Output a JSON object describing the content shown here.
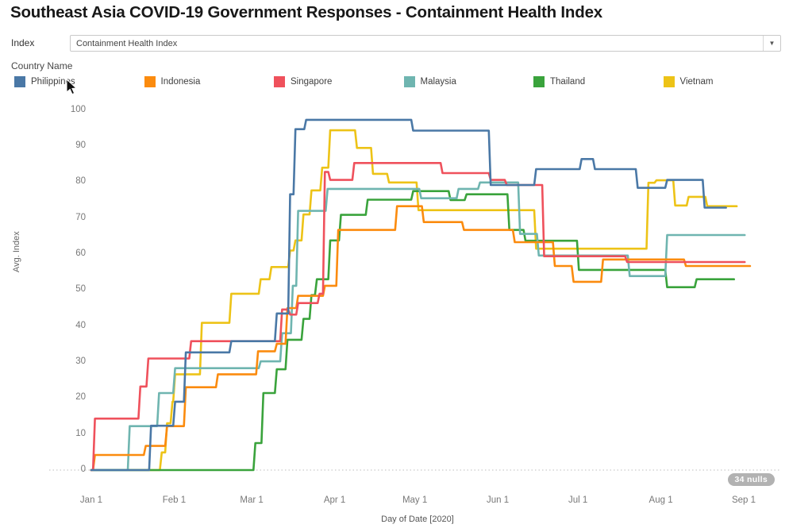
{
  "header": {
    "title": "Southeast Asia COVID-19 Government Responses - Containment Health Index"
  },
  "index_control": {
    "label": "Index",
    "value": "Containment Health Index",
    "caret_icon": "▼"
  },
  "legend": {
    "title": "Country Name",
    "items": [
      {
        "label": "Philippines",
        "color": "#4a78a6"
      },
      {
        "label": "Indonesia",
        "color": "#fb8b0e"
      },
      {
        "label": "Singapore",
        "color": "#ef515c"
      },
      {
        "label": "Malaysia",
        "color": "#6fb5b0"
      },
      {
        "label": "Thailand",
        "color": "#3aa33c"
      },
      {
        "label": "Vietnam",
        "color": "#edc317"
      }
    ]
  },
  "chart_data": {
    "type": "line",
    "step": true,
    "title": "Southeast Asia COVID-19 Government Responses - Containment Health Index",
    "xlabel": "Day of Date [2020]",
    "ylabel": "Avg. Index",
    "ylim": [
      0,
      100
    ],
    "y_ticks": [
      0,
      10,
      20,
      30,
      40,
      50,
      60,
      70,
      80,
      90,
      100
    ],
    "x_ticks": [
      {
        "label": "Jan 1",
        "day": 0
      },
      {
        "label": "Feb 1",
        "day": 31
      },
      {
        "label": "Mar 1",
        "day": 60
      },
      {
        "label": "Apr 1",
        "day": 91
      },
      {
        "label": "May 1",
        "day": 121
      },
      {
        "label": "Jun 1",
        "day": 152
      },
      {
        "label": "Jul 1",
        "day": 182
      },
      {
        "label": "Aug 1",
        "day": 213
      },
      {
        "label": "Sep 1",
        "day": 244
      }
    ],
    "grid": "zero-line-dotted-only",
    "legend_position": "top",
    "nulls_badge": "34 nulls",
    "series": [
      {
        "name": "Philippines",
        "color": "#4a78a6",
        "points": [
          [
            0,
            0
          ],
          [
            22,
            12.3
          ],
          [
            31,
            19
          ],
          [
            35,
            32.7
          ],
          [
            52,
            35.8
          ],
          [
            69,
            43.5
          ],
          [
            74,
            76.6
          ],
          [
            76,
            94.7
          ],
          [
            80,
            97.3
          ],
          [
            120,
            94.3
          ],
          [
            149,
            79.2
          ],
          [
            166,
            83.6
          ],
          [
            183,
            86.4
          ],
          [
            188,
            83.6
          ],
          [
            204,
            78.4
          ],
          [
            215,
            80.6
          ],
          [
            229,
            72.9
          ],
          [
            237,
            72.9
          ]
        ]
      },
      {
        "name": "Indonesia",
        "color": "#fb8b0e",
        "points": [
          [
            0,
            0
          ],
          [
            1,
            4.2
          ],
          [
            20,
            6.7
          ],
          [
            28,
            12.2
          ],
          [
            35,
            23
          ],
          [
            47,
            26.6
          ],
          [
            62,
            33
          ],
          [
            69,
            35.1
          ],
          [
            73,
            45
          ],
          [
            77,
            48.4
          ],
          [
            87,
            51.2
          ],
          [
            92,
            66.7
          ],
          [
            114,
            73.3
          ],
          [
            124,
            68.9
          ],
          [
            139,
            66.7
          ],
          [
            158,
            63.3
          ],
          [
            173,
            56.7
          ],
          [
            180,
            52.3
          ],
          [
            191,
            58.5
          ],
          [
            222,
            56.7
          ],
          [
            246,
            56.7
          ]
        ]
      },
      {
        "name": "Singapore",
        "color": "#ef515c",
        "points": [
          [
            0,
            0
          ],
          [
            1,
            14.3
          ],
          [
            18,
            23.2
          ],
          [
            21,
            31
          ],
          [
            37,
            35.8
          ],
          [
            71,
            44.6
          ],
          [
            74,
            43.2
          ],
          [
            77,
            46.4
          ],
          [
            85,
            49
          ],
          [
            87,
            82.8
          ],
          [
            89,
            80.6
          ],
          [
            98,
            85.3
          ],
          [
            131,
            82.5
          ],
          [
            149,
            80.6
          ],
          [
            155,
            79.2
          ],
          [
            169,
            59.4
          ],
          [
            200,
            57.8
          ],
          [
            244,
            57.8
          ]
        ]
      },
      {
        "name": "Malaysia",
        "color": "#6fb5b0",
        "points": [
          [
            0,
            0
          ],
          [
            14,
            12.2
          ],
          [
            25,
            21.4
          ],
          [
            31,
            28.3
          ],
          [
            63,
            30.2
          ],
          [
            71,
            38
          ],
          [
            75,
            51.2
          ],
          [
            77,
            72
          ],
          [
            88,
            78.1
          ],
          [
            123,
            75.5
          ],
          [
            137,
            78.1
          ],
          [
            145,
            79.9
          ],
          [
            160,
            65.6
          ],
          [
            167,
            59.6
          ],
          [
            201,
            53.9
          ],
          [
            215,
            65.3
          ],
          [
            244,
            65.3
          ]
        ]
      },
      {
        "name": "Thailand",
        "color": "#3aa33c",
        "points": [
          [
            0,
            0
          ],
          [
            60,
            0
          ],
          [
            61,
            7.5
          ],
          [
            64,
            21.4
          ],
          [
            69,
            28
          ],
          [
            73,
            36.2
          ],
          [
            79,
            42
          ],
          [
            82,
            48.6
          ],
          [
            84,
            53
          ],
          [
            89,
            63.8
          ],
          [
            93,
            70.9
          ],
          [
            103,
            75.1
          ],
          [
            120,
            77.5
          ],
          [
            134,
            75
          ],
          [
            140,
            76.6
          ],
          [
            156,
            66.7
          ],
          [
            162,
            63.7
          ],
          [
            182,
            55.6
          ],
          [
            215,
            50.8
          ],
          [
            226,
            53
          ],
          [
            240,
            53
          ]
        ]
      },
      {
        "name": "Vietnam",
        "color": "#edc317",
        "points": [
          [
            0,
            0
          ],
          [
            26,
            4.9
          ],
          [
            28,
            13
          ],
          [
            30,
            19
          ],
          [
            31,
            26.6
          ],
          [
            41,
            40.9
          ],
          [
            52,
            49
          ],
          [
            63,
            53
          ],
          [
            67,
            56.4
          ],
          [
            74,
            61
          ],
          [
            76,
            63.8
          ],
          [
            79,
            71
          ],
          [
            82,
            77.7
          ],
          [
            86,
            84
          ],
          [
            89,
            94.4
          ],
          [
            99,
            89.5
          ],
          [
            105,
            82.3
          ],
          [
            111,
            79.9
          ],
          [
            122,
            72.2
          ],
          [
            166,
            61.5
          ],
          [
            208,
            79.8
          ],
          [
            211,
            80.5
          ],
          [
            218,
            73.5
          ],
          [
            223,
            75.9
          ],
          [
            230,
            73.3
          ],
          [
            241,
            73.3
          ]
        ]
      }
    ]
  }
}
